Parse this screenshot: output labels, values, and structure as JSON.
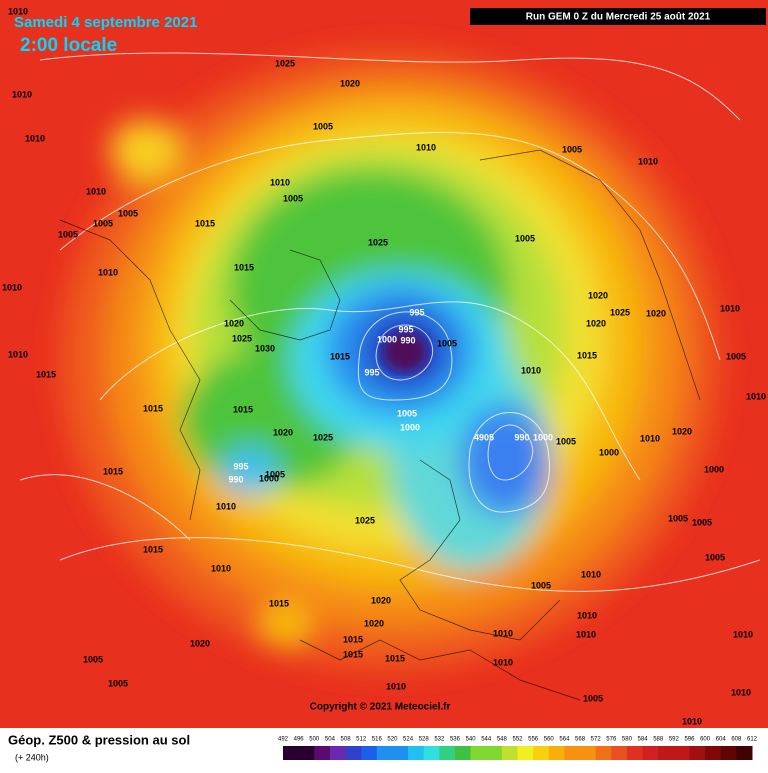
{
  "header": {
    "date": "Samedi 4 septembre 2021",
    "time": "2:00 locale",
    "run": "Run GEM 0 Z du Mercredi 25 août 2021"
  },
  "map": {
    "isobar_labels": [
      1010,
      1025,
      1020,
      1010,
      1005,
      1010,
      1010,
      1005,
      1010,
      1010,
      1005,
      1010,
      1005,
      1005,
      1005,
      1015,
      1025,
      1005,
      1010,
      1015,
      1010,
      1020,
      1020,
      1025,
      1020,
      1010,
      1020,
      995,
      995,
      1025,
      1000,
      990,
      1005,
      1030,
      1015,
      1010,
      1015,
      1005,
      995,
      1010,
      1015,
      1010,
      1015,
      1015,
      1005,
      1000,
      1020,
      1025,
      4905,
      990,
      1000,
      1005,
      1010,
      1020,
      1000,
      1000,
      995,
      990,
      1005,
      1000,
      1015,
      1010,
      1005,
      1005,
      1025,
      1005,
      1015,
      1010,
      1010,
      1005,
      1020,
      1015,
      1010,
      1020,
      1010,
      1015,
      1010,
      1010,
      1020,
      1015,
      1005,
      1010,
      1015,
      1005,
      1010,
      1005,
      1010,
      1010
    ],
    "copyright": "Copyright © 2021 Meteociel.fr"
  },
  "footer": {
    "title": "Géop. Z500 & pression au sol",
    "lead": "(+ 240h)",
    "scale": [
      492,
      496,
      500,
      504,
      508,
      512,
      516,
      520,
      524,
      528,
      532,
      536,
      540,
      544,
      548,
      552,
      556,
      560,
      564,
      568,
      572,
      576,
      580,
      584,
      588,
      592,
      596,
      600,
      604,
      608,
      612
    ]
  }
}
